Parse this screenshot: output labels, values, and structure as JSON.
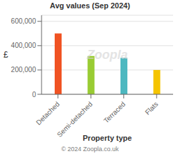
{
  "chart_data": {
    "type": "bar",
    "title": "Avg values (Sep 2024)",
    "categories": [
      "Detached",
      "Semi-detached",
      "Terraced",
      "Flats"
    ],
    "values": [
      500000,
      315000,
      300000,
      200000
    ],
    "colors": [
      "#f05323",
      "#99cc33",
      "#4db8c0",
      "#f5c400"
    ],
    "ylabel": "£",
    "xlabel": "Property type",
    "ylim": [
      0,
      650000
    ],
    "yticks": [
      0,
      {
        "value": 200000,
        "label": "200,000"
      },
      {
        "value": 400000,
        "label": "400,000"
      },
      {
        "value": 600000,
        "label": "600,000"
      }
    ],
    "grid": true,
    "annotations": [
      "Zoopla",
      "© 2024 Zoopla.co.uk"
    ]
  }
}
